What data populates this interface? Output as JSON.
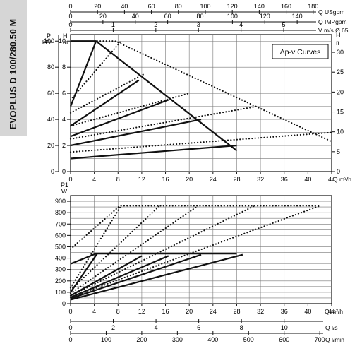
{
  "side_label": "EVOPLUS D 100/280.50 M",
  "chart_data": [
    {
      "type": "line",
      "subtitle": "Δp-v Curves",
      "flow_axis": {
        "label": "Q m³/h",
        "ticks": [
          0,
          4,
          8,
          12,
          16,
          20,
          24,
          28,
          32,
          36,
          40,
          44
        ]
      },
      "top_axes": [
        {
          "label": "Q USgpm",
          "ticks": [
            0,
            20,
            40,
            60,
            80,
            100,
            120,
            140,
            160,
            180
          ],
          "per_m3h": 4.403
        },
        {
          "label": "Q IMPgpm",
          "ticks": [
            0,
            20,
            40,
            60,
            80,
            100,
            120,
            140,
            160
          ],
          "per_m3h": 3.666
        },
        {
          "label": "V m/s Ø 65",
          "ticks": [
            0,
            1,
            2,
            3,
            4,
            5,
            6
          ],
          "per_m3h": 0.1392
        }
      ],
      "y_left": {
        "label_p": "P",
        "label_p_unit": "kPa",
        "label_h": "H",
        "label_h_unit": "m",
        "ticks_m": [
          0,
          2,
          4,
          6,
          8,
          10
        ],
        "ticks_kpa": [
          0,
          20,
          40,
          60,
          80,
          100
        ],
        "ylim": [
          0,
          10.5
        ]
      },
      "y_right": {
        "label": "H",
        "unit": "ft",
        "ticks": [
          0,
          5,
          10,
          15,
          20,
          25,
          30
        ]
      },
      "series": [
        {
          "style": "solid",
          "x": [
            0,
            4.3,
            28
          ],
          "y": [
            10,
            10,
            1.6
          ]
        },
        {
          "style": "dotted",
          "x": [
            4.5,
            7.5,
            44
          ],
          "y": [
            10,
            10,
            2.3
          ]
        },
        {
          "style": "solid",
          "x": [
            0,
            4.3
          ],
          "y": [
            5,
            10
          ]
        },
        {
          "style": "dotted",
          "x": [
            0,
            8.5
          ],
          "y": [
            5.5,
            10
          ]
        },
        {
          "style": "solid",
          "x": [
            0,
            11.5
          ],
          "y": [
            3.5,
            7.0
          ]
        },
        {
          "style": "dotted",
          "x": [
            0,
            12.5
          ],
          "y": [
            4.5,
            7.5
          ]
        },
        {
          "style": "solid",
          "x": [
            0,
            16.5
          ],
          "y": [
            2.7,
            5.5
          ]
        },
        {
          "style": "dotted",
          "x": [
            0,
            20.0
          ],
          "y": [
            3.5,
            6.0
          ]
        },
        {
          "style": "solid",
          "x": [
            0,
            22.0
          ],
          "y": [
            2.0,
            4.0
          ]
        },
        {
          "style": "dotted",
          "x": [
            0,
            31.5
          ],
          "y": [
            2.5,
            5.0
          ]
        },
        {
          "style": "solid",
          "x": [
            0,
            28.0
          ],
          "y": [
            1.0,
            2.0
          ]
        },
        {
          "style": "dotted",
          "x": [
            0,
            44.0
          ],
          "y": [
            1.5,
            3.0
          ]
        }
      ]
    },
    {
      "type": "line",
      "y_axis": {
        "label": "P1",
        "unit": "W",
        "ticks": [
          0,
          100,
          200,
          300,
          400,
          500,
          600,
          700,
          800,
          900
        ],
        "ylim": [
          0,
          950
        ]
      },
      "flow_axis": {
        "label": "Q m³/h",
        "ticks": [
          0,
          4,
          8,
          12,
          16,
          20,
          24,
          28,
          32,
          36,
          40,
          44
        ]
      },
      "bottom_axes": [
        {
          "label": "Q l/s",
          "ticks": [
            0,
            2,
            4,
            6,
            8,
            10,
            12
          ],
          "per_m3h": 0.2778
        },
        {
          "label": "Q l/min",
          "ticks": [
            0,
            100,
            200,
            300,
            400,
            500,
            600,
            700
          ],
          "per_m3h": 16.667
        }
      ],
      "series": [
        {
          "style": "solid",
          "x": [
            0,
            4.3,
            28
          ],
          "y": [
            350,
            440,
            440
          ]
        },
        {
          "style": "dotted",
          "x": [
            0,
            8.3,
            9.5,
            42
          ],
          "y": [
            480,
            860,
            860,
            860
          ]
        },
        {
          "style": "solid",
          "x": [
            0,
            4.5
          ],
          "y": [
            100,
            440
          ]
        },
        {
          "style": "dotted",
          "x": [
            0,
            8.5
          ],
          "y": [
            140,
            860
          ]
        },
        {
          "style": "solid",
          "x": [
            0,
            12.0
          ],
          "y": [
            70,
            420
          ]
        },
        {
          "style": "dotted",
          "x": [
            0,
            15.0
          ],
          "y": [
            120,
            860
          ]
        },
        {
          "style": "solid",
          "x": [
            0,
            16.5
          ],
          "y": [
            55,
            420
          ]
        },
        {
          "style": "dotted",
          "x": [
            0,
            21.5
          ],
          "y": [
            90,
            860
          ]
        },
        {
          "style": "solid",
          "x": [
            0,
            22.0
          ],
          "y": [
            45,
            430
          ]
        },
        {
          "style": "dotted",
          "x": [
            0,
            31.0
          ],
          "y": [
            70,
            860
          ]
        },
        {
          "style": "solid",
          "x": [
            0,
            29.0
          ],
          "y": [
            35,
            430
          ]
        },
        {
          "style": "dotted",
          "x": [
            0,
            42.0
          ],
          "y": [
            55,
            860
          ]
        }
      ]
    }
  ]
}
